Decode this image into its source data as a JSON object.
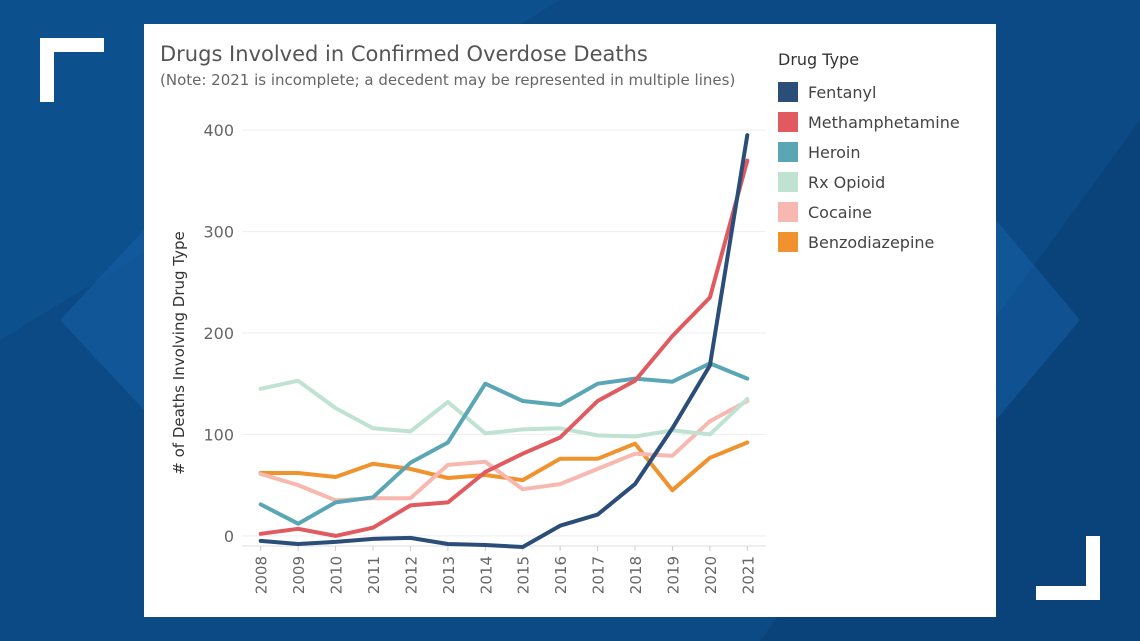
{
  "chart_data": {
    "type": "line",
    "title": "Drugs Involved in Confirmed Overdose Deaths",
    "subtitle": "(Note: 2021 is incomplete; a decedent may be represented in multiple lines)",
    "ylabel": "# of Deaths Involving Drug Type",
    "xlabel": "",
    "legend_title": "Drug Type",
    "legend_position": "right",
    "grid": true,
    "ylim": [
      -10,
      410
    ],
    "yticks": [
      0,
      100,
      200,
      300,
      400
    ],
    "x": [
      "2008",
      "2009",
      "2010",
      "2011",
      "2012",
      "2013",
      "2014",
      "2015",
      "2016",
      "2017",
      "2018",
      "2019",
      "2020",
      "2021"
    ],
    "series": [
      {
        "name": "Fentanyl",
        "color": "#2b4e78",
        "values": [
          -5,
          -8,
          -6,
          -3,
          -2,
          -8,
          -9,
          -11,
          10,
          21,
          51,
          106,
          168,
          395
        ]
      },
      {
        "name": "Methamphetamine",
        "color": "#e05a60",
        "values": [
          2,
          7,
          0,
          8,
          30,
          33,
          63,
          81,
          97,
          133,
          153,
          197,
          235,
          370
        ]
      },
      {
        "name": "Heroin",
        "color": "#5aa6b5",
        "values": [
          31,
          12,
          33,
          38,
          72,
          92,
          150,
          133,
          129,
          150,
          155,
          152,
          170,
          155
        ]
      },
      {
        "name": "Rx Opioid",
        "color": "#bfe2d3",
        "values": [
          145,
          153,
          126,
          106,
          103,
          132,
          101,
          105,
          106,
          99,
          98,
          104,
          100,
          135
        ]
      },
      {
        "name": "Cocaine",
        "color": "#f7b8b0",
        "values": [
          61,
          50,
          35,
          37,
          37,
          70,
          73,
          46,
          51,
          66,
          81,
          79,
          113,
          133
        ]
      },
      {
        "name": "Benzodiazepine",
        "color": "#f0922e",
        "values": [
          62,
          62,
          58,
          71,
          66,
          57,
          60,
          55,
          76,
          76,
          91,
          45,
          77,
          92
        ]
      }
    ]
  }
}
